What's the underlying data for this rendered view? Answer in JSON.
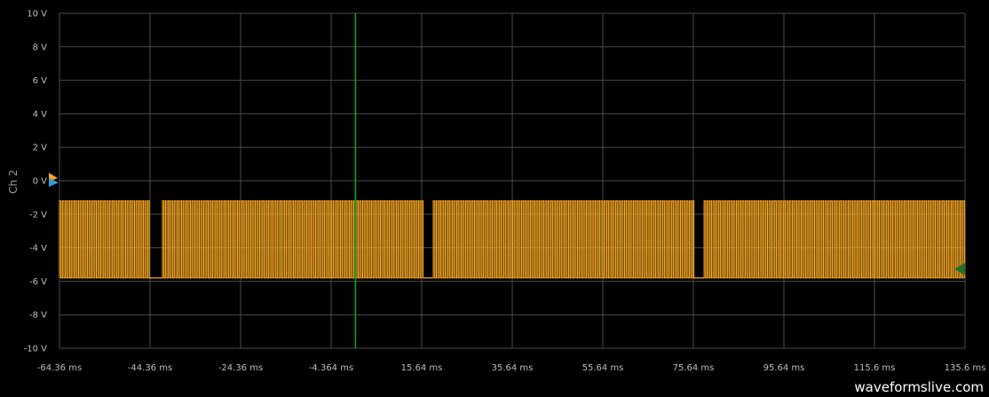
{
  "channel_label": "Ch 2",
  "watermark": "waveformslive.com",
  "colors": {
    "background": "#000000",
    "grid": "#4a4a4a",
    "signal": "#f5a623",
    "cursor": "#0da317",
    "offset_marker": "#f5a623",
    "trigger_marker": "#3a9ad9",
    "level_marker": "#1f6f2a"
  },
  "chart_data": {
    "type": "line",
    "title": "",
    "xlabel": "",
    "ylabel": "Ch 2",
    "x_unit": "ms",
    "y_unit": "V",
    "xlim": [
      -64.36,
      135.6
    ],
    "ylim": [
      -10,
      10
    ],
    "grid": true,
    "x_tick_labels": [
      "-64.36 ms",
      "-44.36 ms",
      "-24.36 ms",
      "-4.364 ms",
      "15.64 ms",
      "35.64 ms",
      "55.64 ms",
      "75.64 ms",
      "95.64 ms",
      "115.6 ms",
      "135.6 ms"
    ],
    "y_tick_labels": [
      "10 V",
      "8 V",
      "6 V",
      "4 V",
      "2 V",
      "0 V",
      "-2 V",
      "-4 V",
      "-6 V",
      "-8 V",
      "-10 V"
    ],
    "trigger_time_ms": 1.0,
    "series": [
      {
        "high_v": -1.2,
        "low_v": -5.8,
        "burst_gaps_ms": [
          [
            -44.4,
            -42.2
          ],
          [
            15.6,
            17.8
          ],
          [
            75.6,
            77.8
          ]
        ],
        "pulse_period_ms": 0.65
      }
    ]
  }
}
